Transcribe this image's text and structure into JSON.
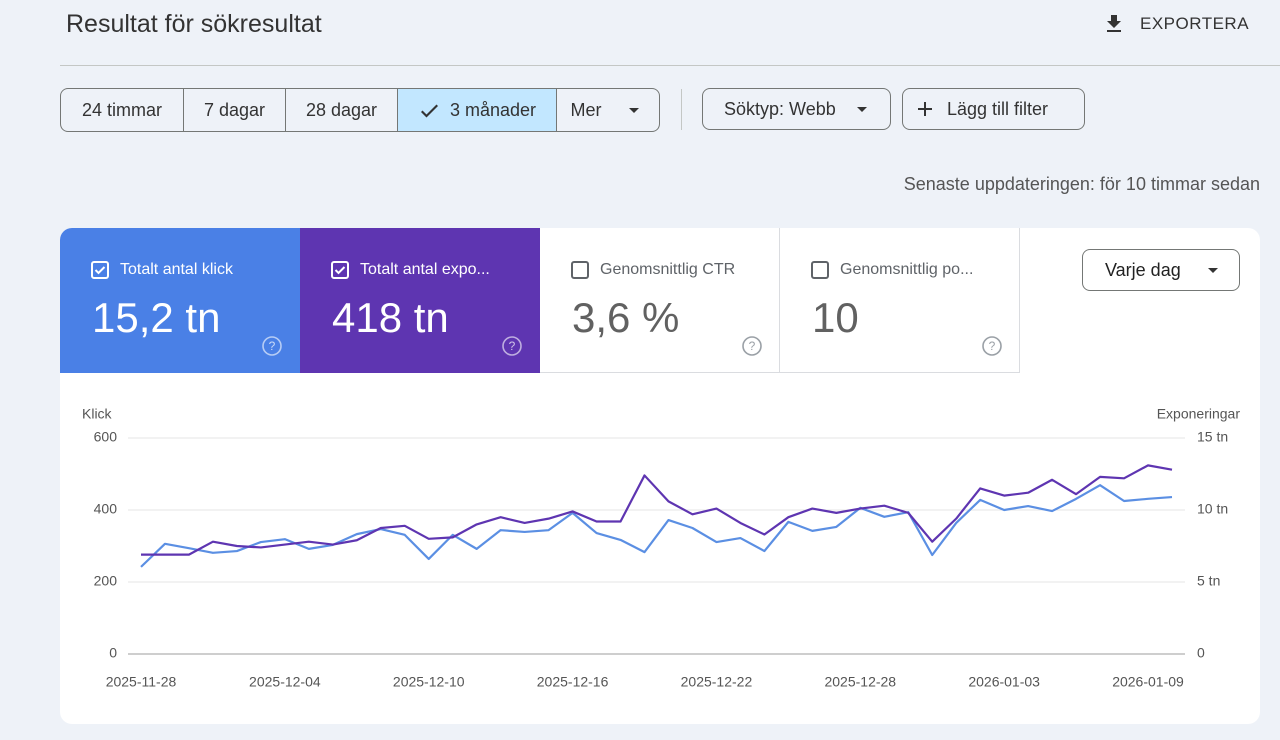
{
  "header": {
    "title": "Resultat för sökresultat",
    "export": "EXPORTERA"
  },
  "filters": {
    "ranges": [
      {
        "label": "24 timmar",
        "selected": false
      },
      {
        "label": "7 dagar",
        "selected": false
      },
      {
        "label": "28 dagar",
        "selected": false
      },
      {
        "label": "3 månader",
        "selected": true
      },
      {
        "label": "Mer",
        "selected": false
      }
    ],
    "search_type": "Söktyp: Webb",
    "add_filter": "Lägg till filter"
  },
  "last_updated": "Senaste uppdateringen: för 10 timmar sedan",
  "metrics": [
    {
      "label": "Totalt antal klick",
      "value": "15,2 tn",
      "checked": true,
      "color": "#4a80e6"
    },
    {
      "label": "Totalt antal expo...",
      "value": "418 tn",
      "checked": true,
      "color": "#5e35b1"
    },
    {
      "label": "Genomsnittlig CTR",
      "value": "3,6 %",
      "checked": false,
      "color": "#ffffff"
    },
    {
      "label": "Genomsnittlig po...",
      "value": "10",
      "checked": false,
      "color": "#ffffff"
    }
  ],
  "granularity": "Varje dag",
  "chart_data": {
    "type": "line",
    "categories": [
      "2025-11-28",
      null,
      null,
      null,
      null,
      null,
      "2025-12-04",
      null,
      null,
      null,
      null,
      null,
      "2025-12-10",
      null,
      null,
      null,
      null,
      null,
      "2025-12-16",
      null,
      null,
      null,
      null,
      null,
      "2025-12-22",
      null,
      null,
      null,
      null,
      null,
      "2025-12-28",
      null,
      null,
      null,
      null,
      null,
      "2026-01-03",
      null,
      null,
      null,
      null,
      null,
      "2026-01-09",
      null
    ],
    "series": [
      {
        "name": "Klick",
        "color": "#5b8fe3",
        "values": [
          242,
          306,
          294,
          281,
          286,
          311,
          319,
          292,
          303,
          333,
          347,
          331,
          264,
          331,
          292,
          344,
          339,
          344,
          392,
          336,
          317,
          283,
          372,
          350,
          311,
          322,
          286,
          367,
          342,
          353,
          406,
          381,
          394,
          275,
          364,
          428,
          400,
          411,
          397,
          431,
          469,
          425,
          431,
          436
        ]
      },
      {
        "name": "Exponeringar",
        "color": "#5e35b1",
        "axis": "y2",
        "values": [
          6900,
          6900,
          6900,
          7800,
          7500,
          7400,
          7600,
          7800,
          7600,
          7900,
          8750,
          8900,
          8000,
          8100,
          9000,
          9500,
          9100,
          9400,
          9900,
          9200,
          9200,
          12400,
          10600,
          9700,
          10100,
          9100,
          8300,
          9500,
          10100,
          9800,
          10100,
          10300,
          9800,
          7800,
          9400,
          11500,
          11000,
          11200,
          12100,
          11100,
          12300,
          12200,
          13100,
          12800
        ]
      }
    ],
    "ylim": [
      0,
      600
    ],
    "yticks": [
      0,
      200,
      400,
      600
    ],
    "y2lim": [
      0,
      15000
    ],
    "y2ticks": [
      0,
      {
        "value": 5000,
        "label": "5 tn"
      },
      {
        "value": 10000,
        "label": "10 tn"
      },
      {
        "value": 15000,
        "label": "15 tn"
      }
    ],
    "grid": true
  }
}
